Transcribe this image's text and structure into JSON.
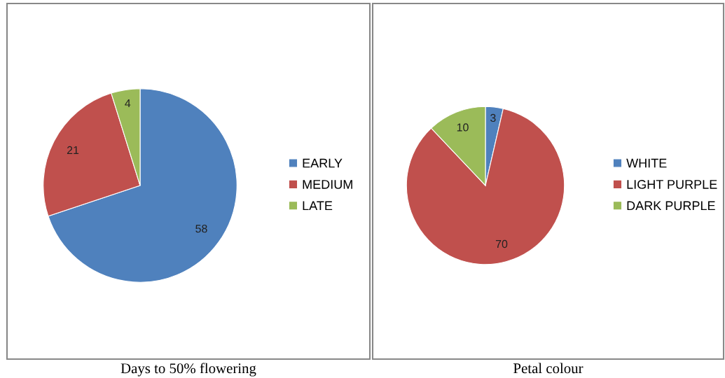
{
  "chart_data": [
    {
      "type": "pie",
      "title": "Days to 50% flowering",
      "categories": [
        "EARLY",
        "MEDIUM",
        "LATE"
      ],
      "values": [
        58,
        21,
        4
      ],
      "colors": [
        "#4f81bd",
        "#c0504d",
        "#9bbb59"
      ],
      "data_labels": true,
      "legend": "right"
    },
    {
      "type": "pie",
      "title": "Petal colour",
      "categories": [
        "WHITE",
        "LIGHT PURPLE",
        "DARK PURPLE"
      ],
      "values": [
        3,
        70,
        10
      ],
      "colors": [
        "#4f81bd",
        "#c0504d",
        "#9bbb59"
      ],
      "data_labels": true,
      "legend": "right"
    }
  ]
}
